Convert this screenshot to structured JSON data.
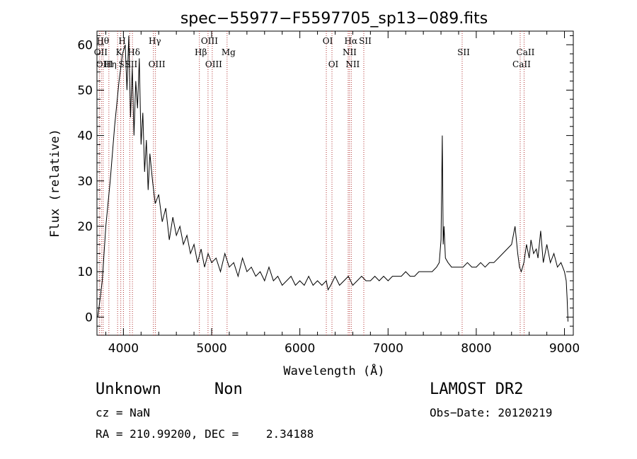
{
  "chart_data": {
    "type": "line",
    "title": "spec−55977−F5597705_sp13−089.fits",
    "xlabel": "Wavelength (Å)",
    "ylabel": "Flux (relative)",
    "xlim": [
      3700,
      9100
    ],
    "ylim": [
      -4,
      63
    ],
    "xticks": [
      4000,
      5000,
      6000,
      7000,
      8000,
      9000
    ],
    "yticks": [
      0,
      10,
      20,
      30,
      40,
      50,
      60
    ],
    "grid": false,
    "series": [
      {
        "color": "#000000",
        "x": [
          3710,
          3760,
          3800,
          3850,
          3900,
          3950,
          3990,
          4020,
          4040,
          4060,
          4080,
          4100,
          4120,
          4140,
          4160,
          4180,
          4200,
          4220,
          4240,
          4260,
          4280,
          4300,
          4330,
          4360,
          4400,
          4440,
          4480,
          4520,
          4560,
          4600,
          4640,
          4680,
          4720,
          4760,
          4800,
          4840,
          4880,
          4920,
          4960,
          5000,
          5050,
          5100,
          5150,
          5200,
          5250,
          5300,
          5350,
          5400,
          5450,
          5500,
          5550,
          5600,
          5650,
          5700,
          5750,
          5800,
          5850,
          5900,
          5950,
          6000,
          6050,
          6100,
          6150,
          6200,
          6250,
          6300,
          6320,
          6350,
          6400,
          6450,
          6500,
          6550,
          6600,
          6650,
          6700,
          6750,
          6800,
          6850,
          6900,
          6950,
          7000,
          7050,
          7100,
          7150,
          7200,
          7250,
          7300,
          7350,
          7400,
          7450,
          7500,
          7550,
          7580,
          7600,
          7615,
          7625,
          7635,
          7650,
          7680,
          7720,
          7760,
          7800,
          7850,
          7900,
          7950,
          8000,
          8050,
          8100,
          8150,
          8200,
          8250,
          8300,
          8350,
          8400,
          8440,
          8470,
          8490,
          8510,
          8540,
          8570,
          8600,
          8620,
          8650,
          8680,
          8700,
          8730,
          8760,
          8800,
          8840,
          8880,
          8920,
          8960,
          9000,
          9020,
          9030,
          9040
        ],
        "y": [
          0,
          8,
          20,
          30,
          42,
          52,
          58,
          60,
          50,
          62,
          44,
          55,
          40,
          52,
          46,
          57,
          38,
          45,
          32,
          39,
          28,
          36,
          30,
          25,
          27,
          21,
          24,
          17,
          22,
          18,
          20,
          16,
          18,
          14,
          16,
          12,
          15,
          11,
          14,
          12,
          13,
          10,
          14,
          11,
          12,
          9,
          13,
          10,
          11,
          9,
          10,
          8,
          11,
          8,
          9,
          7,
          8,
          9,
          7,
          8,
          7,
          9,
          7,
          8,
          7,
          8,
          6,
          7,
          9,
          7,
          8,
          9,
          7,
          8,
          9,
          8,
          8,
          9,
          8,
          9,
          8,
          9,
          9,
          9,
          10,
          9,
          9,
          10,
          10,
          10,
          10,
          11,
          12,
          17,
          40,
          16,
          20,
          13,
          12,
          11,
          11,
          11,
          11,
          12,
          11,
          11,
          12,
          11,
          12,
          12,
          13,
          14,
          15,
          16,
          20,
          14,
          11,
          10,
          12,
          16,
          13,
          17,
          14,
          15,
          13,
          19,
          12,
          16,
          12,
          14,
          11,
          12,
          10,
          8,
          4,
          -1
        ]
      }
    ],
    "lines": [
      {
        "x": 3727,
        "label": "OII",
        "row": 1
      },
      {
        "x": 3750,
        "label": "Hθ",
        "row": 0
      },
      {
        "x": 3770,
        "label": "OIII",
        "row": 2
      },
      {
        "x": 3835,
        "label": "Hη",
        "row": 2
      },
      {
        "x": 3934,
        "label": "K",
        "row": 1
      },
      {
        "x": 3970,
        "label": "H",
        "row": 0
      },
      {
        "x": 4000,
        "label": "SII",
        "row": 2
      },
      {
        "x": 4072,
        "label": "SII",
        "row": 2
      },
      {
        "x": 4102,
        "label": "Hδ",
        "row": 1
      },
      {
        "x": 4340,
        "label": "Hγ",
        "row": 0
      },
      {
        "x": 4363,
        "label": "OIII",
        "row": 2
      },
      {
        "x": 4861,
        "label": "Hβ",
        "row": 1
      },
      {
        "x": 4959,
        "label": "OIII",
        "row": 0
      },
      {
        "x": 5007,
        "label": "OIII",
        "row": 2
      },
      {
        "x": 5175,
        "label": "Mg",
        "row": 1
      },
      {
        "x": 6300,
        "label": "OI",
        "row": 0
      },
      {
        "x": 6364,
        "label": "OI",
        "row": 2
      },
      {
        "x": 6548,
        "label": "NII",
        "row": 1
      },
      {
        "x": 6563,
        "label": "Hα",
        "row": 0
      },
      {
        "x": 6583,
        "label": "NII",
        "row": 2
      },
      {
        "x": 6725,
        "label": "SII",
        "row": 0
      },
      {
        "x": 7840,
        "label": "SII",
        "row": 1
      },
      {
        "x": 8498,
        "label": "CaII",
        "row": 2
      },
      {
        "x": 8542,
        "label": "CaII",
        "row": 1
      }
    ]
  },
  "footer": {
    "object_class": "Unknown",
    "subclass": "Non",
    "survey": "LAMOST DR2",
    "redshift": "cz = NaN",
    "obs_date": "Obs−Date: 20120219",
    "coords": "RA = 210.99200, DEC =    2.34188"
  }
}
